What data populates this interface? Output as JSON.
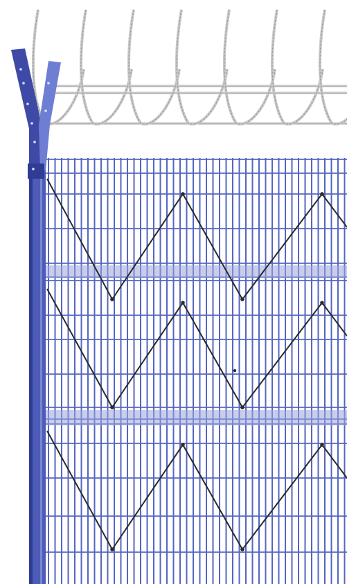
{
  "scene": {
    "subject": "security-mesh-fence-panel-with-razor-wire",
    "colors": {
      "mesh": "#5566c0",
      "mesh_light": "#9aa4dd",
      "post": "#4c5cb8",
      "post_dark": "#2f3c93",
      "y_arm": "#3e4aa6",
      "y_arm_light": "#6e7fd3",
      "zigzag": "#2a2a2a",
      "razor_wire": "#9a9a9a",
      "razor_wire_light": "#c9c9c9",
      "background": "#ffffff"
    },
    "features": {
      "zigzag_rows": 3,
      "coil_loops_visible": 7,
      "top_support_wires": 3
    }
  }
}
